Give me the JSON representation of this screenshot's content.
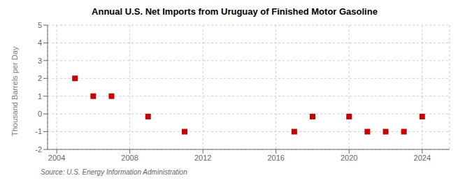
{
  "chart_data": {
    "type": "scatter",
    "title": "Annual U.S. Net Imports from Uruguay of Finished Motor Gasoline",
    "ylabel": "Thousand Barrels per Day",
    "annotations": [
      "Source: U.S. Energy Information Administration"
    ],
    "x": [
      2005,
      2006,
      2007,
      2009,
      2011,
      2017,
      2018,
      2020,
      2021,
      2022,
      2023,
      2024
    ],
    "values": [
      2,
      1,
      1,
      -0.15,
      -1,
      -1,
      -0.15,
      -0.15,
      -1,
      -1,
      -1,
      -0.15
    ],
    "color": "#cc0000",
    "marker": "square",
    "xlim": [
      2003.5,
      2025.5
    ],
    "ylim": [
      -2,
      5
    ],
    "xticks": [
      2004,
      2008,
      2012,
      2016,
      2020,
      2024
    ],
    "yticks": [
      -2,
      -1,
      0,
      1,
      2,
      3,
      4,
      5
    ],
    "grid": true
  }
}
